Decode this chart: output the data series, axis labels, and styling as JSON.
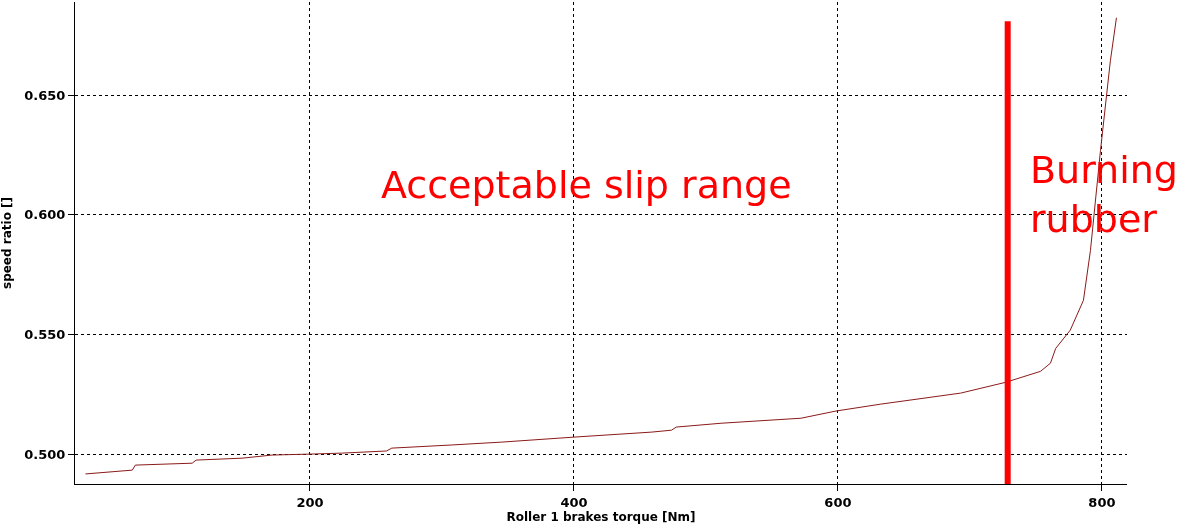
{
  "chart_data": {
    "type": "line",
    "xlabel": "Roller 1 brakes torque [Nm]",
    "ylabel": "speed ratio []",
    "x": [
      29.9,
      65.4,
      67.7,
      110.8,
      113.8,
      148.6,
      171.3,
      200,
      224,
      258,
      262,
      307,
      345,
      400,
      459,
      474,
      477.5,
      511.5,
      572,
      598.5,
      632.5,
      693,
      727,
      753.5,
      761,
      765,
      776,
      786,
      791.3,
      798.9,
      806.4,
      811
    ],
    "series": [
      {
        "color": "#8b1a1a",
        "values": [
          0.4917,
          0.4933,
          0.4954,
          0.4962,
          0.4975,
          0.4983,
          0.4996,
          0.5,
          0.5004,
          0.5013,
          0.5025,
          0.5038,
          0.505,
          0.5071,
          0.5092,
          0.51,
          0.5113,
          0.5129,
          0.515,
          0.518,
          0.5209,
          0.5255,
          0.53,
          0.5346,
          0.538,
          0.5442,
          0.5518,
          0.5643,
          0.5851,
          0.6269,
          0.6644,
          0.6824
        ]
      }
    ],
    "xlim": [
      22,
      819
    ],
    "ylim": [
      0.4875,
      0.689
    ],
    "xticks": [
      200,
      400,
      600,
      800
    ],
    "yticks": [
      {
        "value": 0.5,
        "label": "0.500"
      },
      {
        "value": 0.55,
        "label": "0.550"
      },
      {
        "value": 0.6,
        "label": "0.600"
      },
      {
        "value": 0.65,
        "label": "0.650"
      }
    ],
    "ref_lines": [
      {
        "axis": "x",
        "value": 728.6,
        "color": "#ff0000"
      }
    ],
    "annotations": [
      "Acceptable slip range",
      "Burning\nrubber"
    ],
    "grid": true,
    "line_style": "solid",
    "marker": "none"
  }
}
